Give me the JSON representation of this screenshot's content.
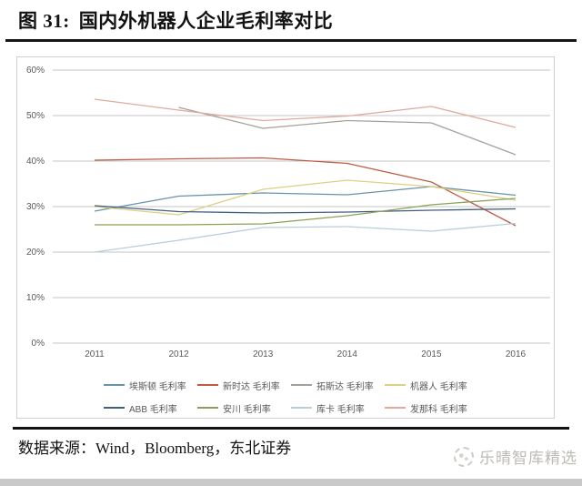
{
  "header": {
    "figure_label": "图 31:",
    "title": "国内外机器人企业毛利率对比"
  },
  "chart_data": {
    "type": "line",
    "categories": [
      "2011",
      "2012",
      "2013",
      "2014",
      "2015",
      "2016"
    ],
    "series": [
      {
        "name": "埃斯顿 毛利率",
        "color": "#6a93ab",
        "values": [
          29.0,
          32.3,
          33.0,
          32.6,
          34.4,
          32.5
        ]
      },
      {
        "name": "新时达 毛利率",
        "color": "#bf5b45",
        "values": [
          40.2,
          40.5,
          40.7,
          39.5,
          35.4,
          25.8
        ]
      },
      {
        "name": "拓斯达 毛利率",
        "color": "#a5a09a",
        "values": [
          null,
          51.8,
          47.2,
          48.9,
          48.4,
          41.4
        ]
      },
      {
        "name": "机器人 毛利率",
        "color": "#ddd083",
        "values": [
          30.0,
          28.2,
          33.8,
          35.8,
          34.4,
          31.4
        ]
      },
      {
        "name": "ABB 毛利率",
        "color": "#41607d",
        "values": [
          30.2,
          28.9,
          28.6,
          28.8,
          29.2,
          29.5
        ]
      },
      {
        "name": "安川 毛利率",
        "color": "#8ba155",
        "values": [
          26.0,
          26.0,
          26.2,
          28.0,
          30.4,
          31.8
        ]
      },
      {
        "name": "库卡 毛利率",
        "color": "#b8cedb",
        "values": [
          20.0,
          22.6,
          25.4,
          25.6,
          24.6,
          26.3
        ]
      },
      {
        "name": "发那科 毛利率",
        "color": "#e2a99c",
        "values": [
          53.6,
          51.2,
          48.9,
          49.9,
          52.0,
          47.4
        ]
      }
    ],
    "y_ticks": [
      "60%",
      "50%",
      "40%",
      "30%",
      "20%",
      "10%",
      "0%"
    ],
    "ylim": [
      0,
      60
    ],
    "unit": "%",
    "grid": true,
    "legend_position": "bottom"
  },
  "footer": {
    "source": "数据来源：Wind，Bloomberg，东北证券"
  },
  "watermark": {
    "text": "乐晴智库精选"
  }
}
